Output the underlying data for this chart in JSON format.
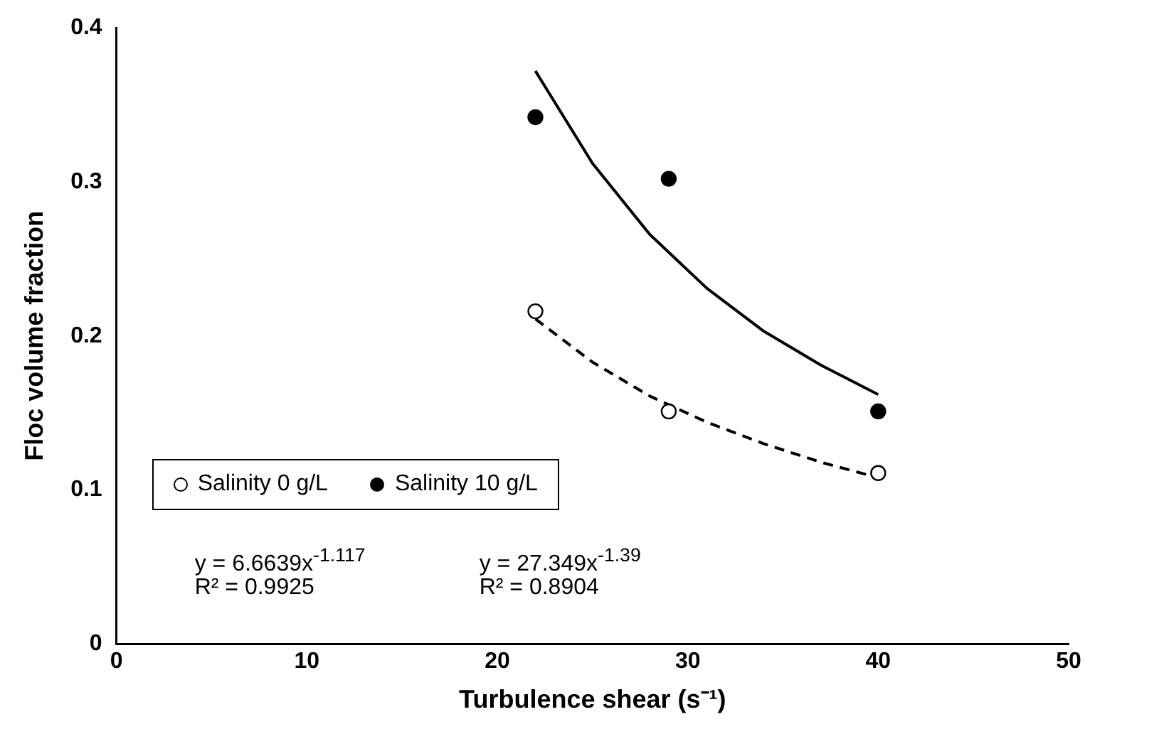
{
  "chart_data": {
    "type": "scatter",
    "xlabel": "Turbulence shear (s⁻¹)",
    "ylabel": "Floc volume fraction",
    "xlim": [
      0,
      50
    ],
    "xticks": [
      0,
      10,
      20,
      30,
      40,
      50
    ],
    "ylim": [
      0,
      0.4
    ],
    "yticks": [
      0,
      0.1,
      0.2,
      0.3,
      0.4
    ],
    "grid": false,
    "legend": "bottom left",
    "marker": "circle",
    "series": [
      {
        "name": "Salinity 0 g/L",
        "color": "#ffffff",
        "x": [
          22,
          29,
          40
        ],
        "values": [
          0.216,
          0.151,
          0.111
        ]
      },
      {
        "name": "Salinity 10 g/L",
        "color": "#000000",
        "x": [
          22,
          29,
          40
        ],
        "values": [
          0.342,
          0.302,
          0.151
        ]
      },
      {
        "type": "line",
        "color": "#000000",
        "line_style": "dashed",
        "marker": "none",
        "x": [
          22,
          25,
          28,
          31,
          34,
          37,
          40
        ],
        "values": [
          0.211,
          0.183,
          0.161,
          0.144,
          0.13,
          0.118,
          0.108
        ]
      },
      {
        "type": "line",
        "color": "#000000",
        "line_style": "solid",
        "marker": "none",
        "x": [
          22,
          25,
          28,
          31,
          34,
          37,
          40
        ],
        "values": [
          0.372,
          0.312,
          0.266,
          0.231,
          0.203,
          0.181,
          0.162
        ]
      }
    ],
    "annotations": [
      "y = 6.6639x$^{-1.117}$",
      "R² = 0.9925",
      "y = 27.349x$^{-1.39}$",
      "R² = 0.8904"
    ]
  }
}
